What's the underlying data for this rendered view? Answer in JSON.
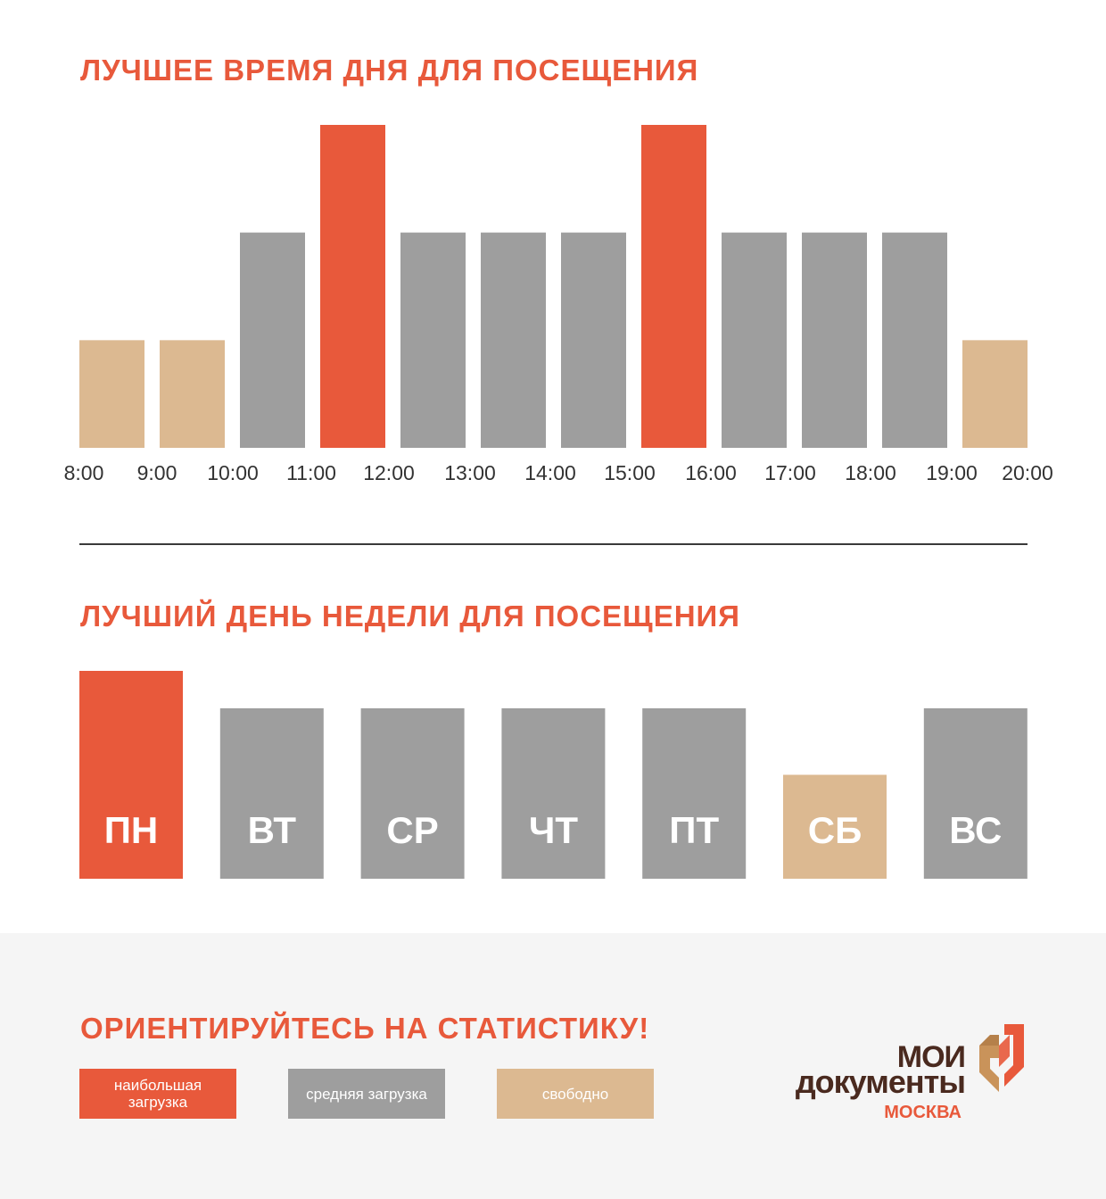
{
  "colors": {
    "high": "#e8593b",
    "medium": "#9e9e9e",
    "free": "#dcb991",
    "title": "#e8593b"
  },
  "titles": {
    "hours": "ЛУЧШЕЕ ВРЕМЯ ДНЯ ДЛЯ ПОСЕЩЕНИЯ",
    "days": "ЛУЧШИЙ ДЕНЬ НЕДЕЛИ ДЛЯ ПОСЕЩЕНИЯ",
    "footer": "ОРИЕНТИРУЙТЕСЬ НА СТАТИСТИКУ!"
  },
  "chart_data": [
    {
      "type": "bar",
      "title": "ЛУЧШЕЕ ВРЕМЯ ДНЯ ДЛЯ ПОСЕЩЕНИЯ",
      "tick_labels": [
        "8:00",
        "9:00",
        "10:00",
        "11:00",
        "12:00",
        "13:00",
        "14:00",
        "15:00",
        "16:00",
        "17:00",
        "18:00",
        "19:00",
        "20:00"
      ],
      "categories": [
        "8:00–9:00",
        "9:00–10:00",
        "10:00–11:00",
        "11:00–12:00",
        "12:00–13:00",
        "13:00–14:00",
        "14:00–15:00",
        "15:00–16:00",
        "16:00–17:00",
        "17:00–18:00",
        "18:00–19:00",
        "19:00–20:00"
      ],
      "values": [
        1,
        1,
        2,
        3,
        2,
        2,
        2,
        3,
        2,
        2,
        2,
        1
      ],
      "levels": [
        "free",
        "free",
        "medium",
        "high",
        "medium",
        "medium",
        "medium",
        "high",
        "medium",
        "medium",
        "medium",
        "free"
      ],
      "ylim": [
        0,
        3
      ],
      "grid": false
    },
    {
      "type": "bar",
      "title": "ЛУЧШИЙ ДЕНЬ НЕДЕЛИ ДЛЯ ПОСЕЩЕНИЯ",
      "categories": [
        "ПН",
        "ВТ",
        "СР",
        "ЧТ",
        "ПТ",
        "СБ",
        "ВС"
      ],
      "values": [
        3,
        2.46,
        2.46,
        2.46,
        2.46,
        1.5,
        2.46
      ],
      "levels": [
        "high",
        "medium",
        "medium",
        "medium",
        "medium",
        "free",
        "medium"
      ],
      "ylim": [
        0,
        3
      ],
      "grid": false
    }
  ],
  "legend": [
    {
      "label": "наибольшая загрузка",
      "level": "high"
    },
    {
      "label": "средняя загрузка",
      "level": "medium"
    },
    {
      "label": "свободно",
      "level": "free"
    }
  ],
  "logo": {
    "line1": "МОИ",
    "line2": "документы",
    "city": "МОСКВА"
  }
}
